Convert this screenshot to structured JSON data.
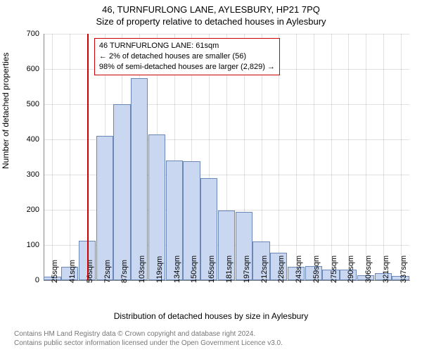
{
  "title": "46, TURNFURLONG LANE, AYLESBURY, HP21 7PQ",
  "subtitle": "Size of property relative to detached houses in Aylesbury",
  "ylabel": "Number of detached properties",
  "xlabel": "Distribution of detached houses by size in Aylesbury",
  "footer_line1": "Contains HM Land Registry data © Crown copyright and database right 2024.",
  "footer_line2": "Contains public sector information licensed under the Open Government Licence v3.0.",
  "chart": {
    "type": "histogram",
    "ylim": [
      0,
      700
    ],
    "xtick_labels": [
      "25sqm",
      "41sqm",
      "56sqm",
      "72sqm",
      "87sqm",
      "103sqm",
      "119sqm",
      "134sqm",
      "150sqm",
      "165sqm",
      "181sqm",
      "197sqm",
      "212sqm",
      "228sqm",
      "243sqm",
      "259sqm",
      "275sqm",
      "290sqm",
      "306sqm",
      "321sqm",
      "337sqm"
    ],
    "ytick_step": 100,
    "values": [
      10,
      38,
      112,
      410,
      500,
      575,
      415,
      340,
      338,
      290,
      198,
      195,
      110,
      78,
      38,
      40,
      30,
      30,
      15,
      20,
      12
    ],
    "bar_fill": "#c9d8f0",
    "bar_stroke": "#6a87b8",
    "grid_color": "#888888",
    "refline_index": 2,
    "refline_color": "#cc0000",
    "annotation": {
      "line1": "46 TURNFURLONG LANE: 61sqm",
      "line2": "← 2% of detached houses are smaller (56)",
      "line3": "98% of semi-detached houses are larger (2,829) →"
    }
  }
}
